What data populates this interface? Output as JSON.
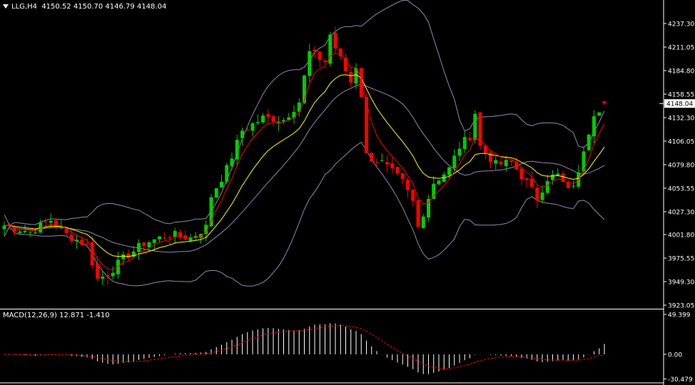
{
  "header": {
    "symbol": "LLG,H4",
    "open": "4150.52",
    "high": "4150.70",
    "low": "4146.79",
    "close": "4148.04"
  },
  "macd_header": {
    "label": "MACD(12,26,9)",
    "main": "12.871",
    "signal": "-1.410"
  },
  "colors": {
    "background": "#000000",
    "bull": "#00cc00",
    "bear": "#ff0000",
    "bands": "#8b8bb0",
    "ema_fast": "#ff0000",
    "ema_slow": "#ffff00",
    "macd_hist": "#ffffff",
    "macd_signal": "#ff0000",
    "price_label_bg": "#ffffff"
  },
  "chart_data": [
    {
      "type": "candlestick",
      "ylim": [
        3923.05,
        4263.55
      ],
      "y_ticks": [
        "4237.30",
        "4211.05",
        "4184.80",
        "4158.55",
        "4132.30",
        "4106.05",
        "4079.80",
        "4053.55",
        "4027.30",
        "4001.80",
        "3975.55",
        "3949.30",
        "3923.05"
      ],
      "current_price_label": "4148.04",
      "current_price": 4148.04,
      "grid": false,
      "ohlc": [],
      "indicators": [
        "Bollinger Bands",
        "Fast MA (red)",
        "Slow MA (yellow)"
      ]
    },
    {
      "type": "bar",
      "name": "MACD",
      "ylim": [
        -30.479,
        49.399
      ],
      "y_ticks": [
        "49.399",
        "0.00",
        "-30.479"
      ],
      "histogram": [],
      "signal": []
    }
  ]
}
